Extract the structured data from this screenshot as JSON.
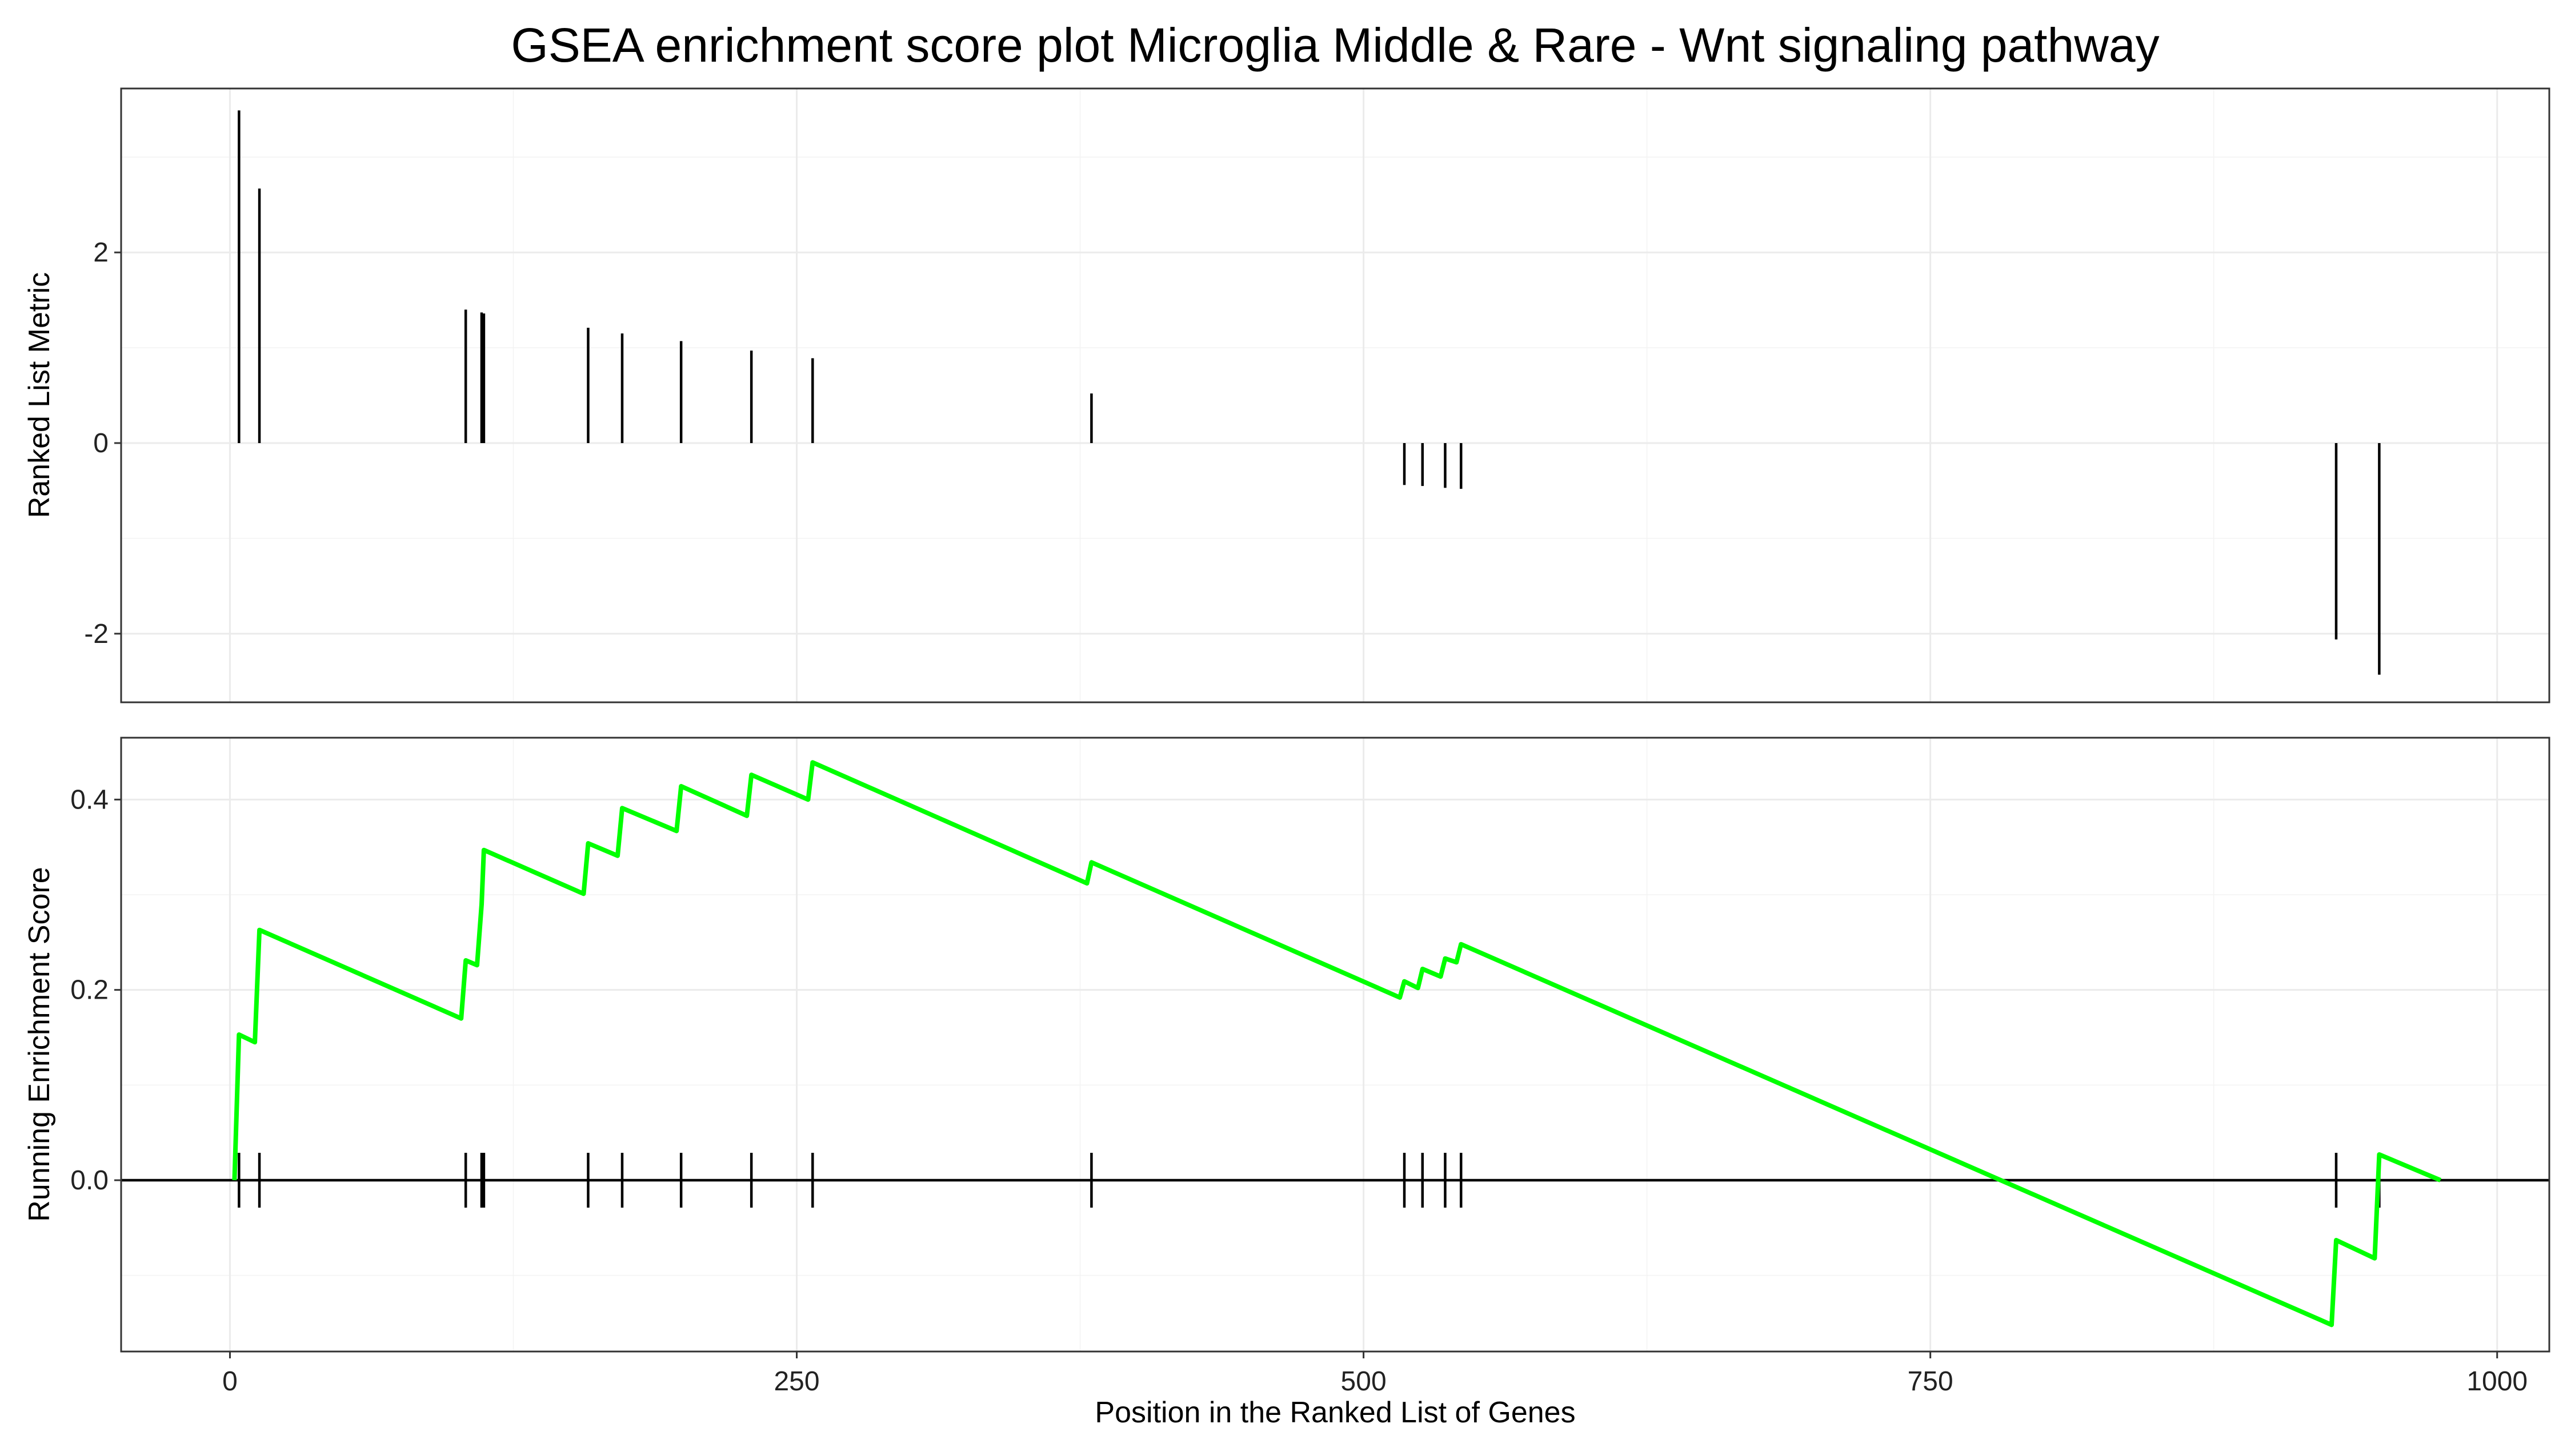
{
  "chart_data": {
    "type": "line",
    "title": "GSEA enrichment score plot Microglia Middle & Rare - Wnt signaling pathway",
    "xlabel": "Position in the Ranked List of Genes",
    "xlim": [
      -48,
      1023
    ],
    "x_ticks": [
      0,
      250,
      500,
      750,
      1000
    ],
    "colors": {
      "running_es": "#00ff00",
      "marks": "#000000"
    },
    "grid": true,
    "panels": [
      {
        "name": "metric",
        "ylabel": "Ranked List Metric",
        "ylim": [
          -2.72,
          3.72
        ],
        "y_ticks": [
          -2,
          0,
          2
        ],
        "series": [
          {
            "type": "bar",
            "x": [
              4,
              13,
              104,
              111,
              112,
              158,
              173,
              199,
              230,
              257,
              380,
              518,
              526,
              536,
              543,
              929,
              948
            ],
            "values": [
              3.49,
              2.67,
              1.4,
              1.37,
              1.36,
              1.21,
              1.15,
              1.07,
              0.97,
              0.89,
              0.52,
              -0.44,
              -0.45,
              -0.47,
              -0.48,
              -2.06,
              -2.43
            ]
          }
        ]
      },
      {
        "name": "enrichment",
        "ylabel": "Running Enrichment Score",
        "ylim": [
          -0.18,
          0.465
        ],
        "y_ticks": [
          0.0,
          0.2,
          0.4
        ],
        "hits": [
          4,
          13,
          104,
          111,
          112,
          158,
          173,
          199,
          230,
          257,
          380,
          518,
          526,
          536,
          543,
          929,
          948
        ],
        "series": [
          {
            "type": "line",
            "x": [
              2,
              4,
              11,
              13,
              102,
              104,
              109,
              111,
              112,
              156,
              158,
              171,
              173,
              197,
              199,
              228,
              230,
              255,
              257,
              378,
              380,
              516,
              518,
              524,
              526,
              534,
              536,
              541,
              543,
              927,
              929,
              946,
              948,
              975
            ],
            "y": [
              0.0,
              0.153,
              0.145,
              0.263,
              0.17,
              0.231,
              0.226,
              0.29,
              0.347,
              0.301,
              0.354,
              0.341,
              0.391,
              0.367,
              0.414,
              0.383,
              0.426,
              0.4,
              0.439,
              0.312,
              0.334,
              0.192,
              0.209,
              0.202,
              0.222,
              0.214,
              0.233,
              0.229,
              0.248,
              -0.152,
              -0.063,
              -0.082,
              0.027,
              0.0
            ]
          }
        ]
      }
    ]
  }
}
